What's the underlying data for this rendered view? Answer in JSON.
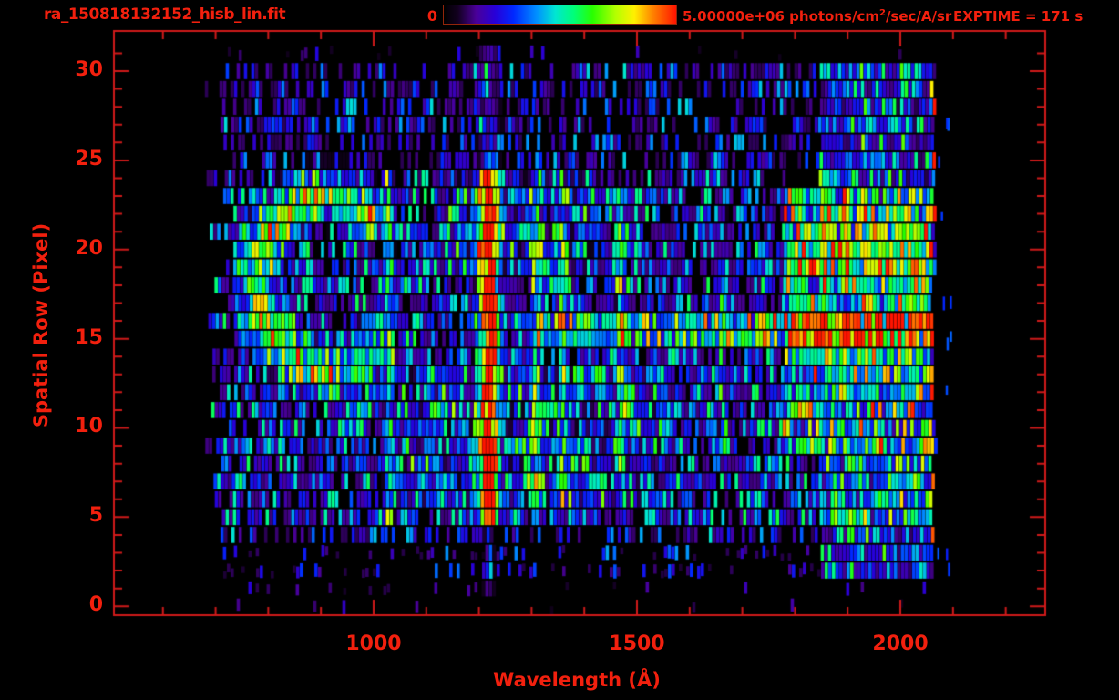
{
  "header": {
    "title": "ra_150818132152_hisb_lin.fit",
    "colorbar_min_label": "0",
    "colorbar_max_prefix": "5.00000e+06 photons/cm",
    "colorbar_sup": "2",
    "colorbar_suffix": "/sec/A/sr",
    "exptime_label": "EXPTIME = 171 s"
  },
  "colors": {
    "text": "#f2200e",
    "axis": "#cf1a1a",
    "background": "#000000",
    "colorbar_border": "#93250a"
  },
  "chart_data": {
    "type": "heatmap",
    "title": "ra_150818132152_hisb_lin.fit",
    "xlabel": "Wavelength (Å)",
    "ylabel": "Spatial Row (Pixel)",
    "x_range": [
      507,
      2275
    ],
    "y_range": [
      -0.5,
      32.25
    ],
    "x_major_ticks": [
      1000,
      1500,
      2000
    ],
    "x_minor_step": 100,
    "y_major_ticks": [
      0,
      5,
      10,
      15,
      20,
      25,
      30
    ],
    "y_minor_step": 1,
    "grid": false,
    "legend_position": "none",
    "colorbar": {
      "min": 0,
      "max": 5000000,
      "min_label": "0",
      "max_label": "5.00000e+06",
      "units": "photons/cm^2/sec/A/sr"
    },
    "exptime_s": 171,
    "seed": 7,
    "colormap": [
      [
        0.0,
        "#000000"
      ],
      [
        0.06,
        "#12001f"
      ],
      [
        0.14,
        "#4a0099"
      ],
      [
        0.22,
        "#2800d8"
      ],
      [
        0.3,
        "#0028ff"
      ],
      [
        0.4,
        "#0090ff"
      ],
      [
        0.48,
        "#00e6d2"
      ],
      [
        0.56,
        "#00ff78"
      ],
      [
        0.64,
        "#28ff00"
      ],
      [
        0.74,
        "#b4ff00"
      ],
      [
        0.82,
        "#fff000"
      ],
      [
        0.9,
        "#ff8200"
      ],
      [
        1.0,
        "#ff1400"
      ]
    ],
    "detector": {
      "lambda_min": 676,
      "lambda_max": 2066,
      "edge_jitter_max": 55,
      "rows": 32,
      "overflow_dash_lambda": [
        2070,
        2098
      ],
      "overflow_dash_probability": 0.4
    },
    "row_profile": [
      [
        0.03,
        0.15
      ],
      [
        0.14,
        0.22
      ],
      [
        0.28,
        0.26
      ],
      [
        0.34,
        0.3
      ],
      [
        0.5,
        0.34
      ],
      [
        0.78,
        0.42
      ],
      [
        0.8,
        0.42
      ],
      [
        0.8,
        0.42
      ],
      [
        0.78,
        0.42
      ],
      [
        0.8,
        0.42
      ],
      [
        0.78,
        0.42
      ],
      [
        0.8,
        0.42
      ],
      [
        0.78,
        0.42
      ],
      [
        0.8,
        0.42
      ],
      [
        0.78,
        0.42
      ],
      [
        0.82,
        0.43
      ],
      [
        0.82,
        0.43
      ],
      [
        0.78,
        0.42
      ],
      [
        0.78,
        0.42
      ],
      [
        0.8,
        0.42
      ],
      [
        0.8,
        0.42
      ],
      [
        0.8,
        0.42
      ],
      [
        0.78,
        0.42
      ],
      [
        0.78,
        0.42
      ],
      [
        0.62,
        0.38
      ],
      [
        0.52,
        0.33
      ],
      [
        0.5,
        0.33
      ],
      [
        0.52,
        0.33
      ],
      [
        0.5,
        0.33
      ],
      [
        0.52,
        0.33
      ],
      [
        0.58,
        0.34
      ],
      [
        0.1,
        0.18
      ]
    ],
    "features": [
      {
        "type": "line",
        "name": "lyman-alpha-1216",
        "lambda": 1216,
        "sigma": 17,
        "rows": [
          4.6,
          24.4
        ],
        "amp": 0.92
      },
      {
        "type": "line",
        "name": "lyman-alpha-upper-wing",
        "lambda": 1216,
        "sigma": 22,
        "rows": [
          24.4,
          31.0
        ],
        "amp": 0.16
      },
      {
        "type": "line",
        "name": "lyman-alpha-lower-wing",
        "lambda": 1216,
        "sigma": 10,
        "rows": [
          1.0,
          4.6
        ],
        "amp": 0.14
      },
      {
        "type": "line",
        "name": "lyman-beta-1026",
        "lambda": 1026,
        "sigma": 9,
        "rows": [
          4.6,
          24.4
        ],
        "amp": 0.3
      },
      {
        "type": "line",
        "name": "oi-1304",
        "lambda": 1306,
        "sigma": 9,
        "rows": [
          4.6,
          24.4
        ],
        "amp": 0.32
      },
      {
        "type": "line",
        "name": "oi-1356",
        "lambda": 1358,
        "sigma": 8,
        "rows": [
          6.0,
          23.0
        ],
        "amp": 0.24
      },
      {
        "type": "line",
        "name": "line-1467",
        "lambda": 1467,
        "sigma": 9,
        "rows": [
          7.5,
          23.5
        ],
        "amp": 0.3
      },
      {
        "type": "line",
        "name": "ci-1657",
        "lambda": 1659,
        "sigma": 8,
        "rows": [
          9.0,
          22.0
        ],
        "amp": 0.18
      },
      {
        "type": "band",
        "name": "solar-continuum",
        "lambda": [
          1775,
          2058
        ],
        "rows": [
          8.5,
          23.5
        ],
        "amp": 0.3
      },
      {
        "type": "band",
        "name": "bright-row-band",
        "lambda": [
          1305,
          2058
        ],
        "rows": [
          14.3,
          16.6
        ],
        "amp": 0.28
      },
      {
        "type": "band",
        "name": "bright-row-band-right",
        "lambda": [
          1700,
          2058
        ],
        "rows": [
          14.3,
          16.6
        ],
        "amp": 0.15
      },
      {
        "type": "band",
        "name": "upper-continuum-rows",
        "lambda": [
          1775,
          2058
        ],
        "rows": [
          18.8,
          22.4
        ],
        "amp": 0.15
      },
      {
        "type": "band",
        "name": "lower-right-speckle",
        "lambda": [
          1845,
          2060
        ],
        "rows": [
          1.8,
          8.5
        ],
        "amp": 0.22
      },
      {
        "type": "band",
        "name": "upper-right-speckle",
        "lambda": [
          1845,
          2060
        ],
        "rows": [
          23.5,
          30.5
        ],
        "amp": 0.18
      },
      {
        "type": "band",
        "name": "central-glow-lower",
        "lambda": [
          1040,
          1560
        ],
        "rows": [
          5.5,
          13.5
        ],
        "amp": 0.1
      },
      {
        "type": "band",
        "name": "central-glow-upper",
        "lambda": [
          1140,
          1430
        ],
        "rows": [
          18.5,
          24.0
        ],
        "amp": 0.09
      },
      {
        "type": "edge-line",
        "name": "red-edge-column",
        "lambda": 2062,
        "sigma": 6,
        "rows": [
          1.5,
          29.5
        ],
        "amp": 0.88,
        "row_probability": 0.5
      },
      {
        "type": "ring",
        "name": "ring-artifact",
        "center_lambda": 906,
        "center_row": 18.2,
        "radius_lambda": 128,
        "radius_row": 4.9,
        "thickness": 0.38,
        "amp": 0.42,
        "gap_deg": [
          -38,
          38
        ]
      }
    ]
  }
}
